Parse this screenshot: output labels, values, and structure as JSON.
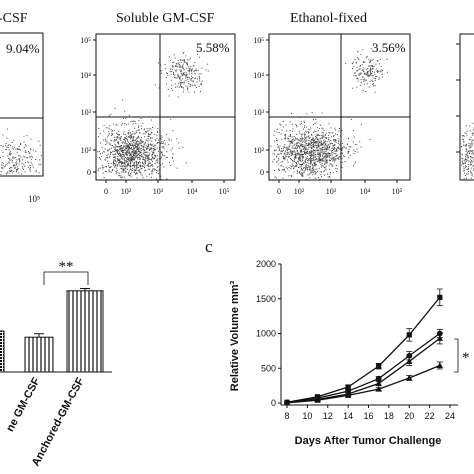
{
  "colors": {
    "ink": "#111111",
    "dot": "#555555",
    "background": "#ffffff"
  },
  "panels": {
    "flow": [
      {
        "title": "-CSF",
        "percent": "9.04%",
        "xticks": [
          "10⁵"
        ],
        "yticks": []
      },
      {
        "title": "Soluble GM-CSF",
        "percent": "5.58%",
        "xticks": [
          "0",
          "10²",
          "10³",
          "10⁴",
          "10⁵"
        ],
        "yticks": [
          "10⁵",
          "10⁴",
          "10³",
          "10²",
          "0"
        ]
      },
      {
        "title": "Ethanol-fixed",
        "percent": "3.56%",
        "xticks": [
          "0",
          "10²",
          "10³",
          "10⁴",
          "10⁵"
        ],
        "yticks": [
          "10⁵",
          "10⁴",
          "10³",
          "10²",
          "0"
        ]
      }
    ],
    "bar": {
      "significance": "**",
      "categories": [
        "ne GM-CSF",
        "Anchored-GM-CSF"
      ]
    },
    "line_label": "c",
    "significance_line": "*"
  },
  "chart_data": [
    {
      "type": "scatter",
      "title": "-CSF",
      "quadrant_percent_upper_right": "9.04%",
      "x_scale": "log",
      "y_scale": "log",
      "xlabel": "",
      "ylabel": ""
    },
    {
      "type": "scatter",
      "title": "Soluble GM-CSF",
      "quadrant_percent_upper_right": "5.58%",
      "x_scale": "log",
      "y_scale": "log",
      "x_ticks": [
        "0",
        "10²",
        "10³",
        "10⁴",
        "10⁵"
      ],
      "y_ticks": [
        "0",
        "10²",
        "10³",
        "10⁴",
        "10⁵"
      ],
      "xlabel": "",
      "ylabel": ""
    },
    {
      "type": "scatter",
      "title": "Ethanol-fixed",
      "quadrant_percent_upper_right": "3.56%",
      "x_scale": "log",
      "y_scale": "log",
      "x_ticks": [
        "0",
        "10²",
        "10³",
        "10⁴",
        "10⁵"
      ],
      "y_ticks": [
        "0",
        "10²",
        "10³",
        "10⁴",
        "10⁵"
      ],
      "xlabel": "",
      "ylabel": ""
    },
    {
      "type": "bar",
      "categories": [
        "ne GM-CSF",
        "Anchored-GM-CSF"
      ],
      "values": [
        0.3,
        0.7
      ],
      "errors": [
        0.03,
        0.02
      ],
      "significance": "**",
      "xlabel": "",
      "ylabel": ""
    },
    {
      "type": "line",
      "panel_label": "c",
      "xlabel": "Days After Tumor Challenge",
      "ylabel": "Relative Volume mm³",
      "x_ticks": [
        8,
        10,
        12,
        14,
        16,
        18,
        20,
        22,
        24
      ],
      "y_ticks": [
        0,
        500,
        1000,
        1500,
        2000
      ],
      "xlim": [
        8,
        24
      ],
      "ylim": [
        0,
        2000
      ],
      "x": [
        8,
        11,
        14,
        17,
        20,
        23
      ],
      "series": [
        {
          "marker": "square",
          "values": [
            10,
            90,
            230,
            530,
            980,
            1520
          ],
          "errors": [
            0,
            15,
            25,
            40,
            90,
            120
          ]
        },
        {
          "marker": "circle",
          "values": [
            8,
            70,
            170,
            350,
            680,
            1000
          ],
          "errors": [
            0,
            12,
            20,
            30,
            60,
            60
          ]
        },
        {
          "marker": "triangle",
          "values": [
            5,
            50,
            130,
            280,
            600,
            930
          ],
          "errors": [
            0,
            10,
            15,
            25,
            60,
            80
          ]
        },
        {
          "marker": "triangle",
          "values": [
            3,
            40,
            110,
            200,
            360,
            540
          ],
          "errors": [
            0,
            8,
            12,
            20,
            35,
            50
          ]
        }
      ],
      "significance": "*"
    }
  ]
}
